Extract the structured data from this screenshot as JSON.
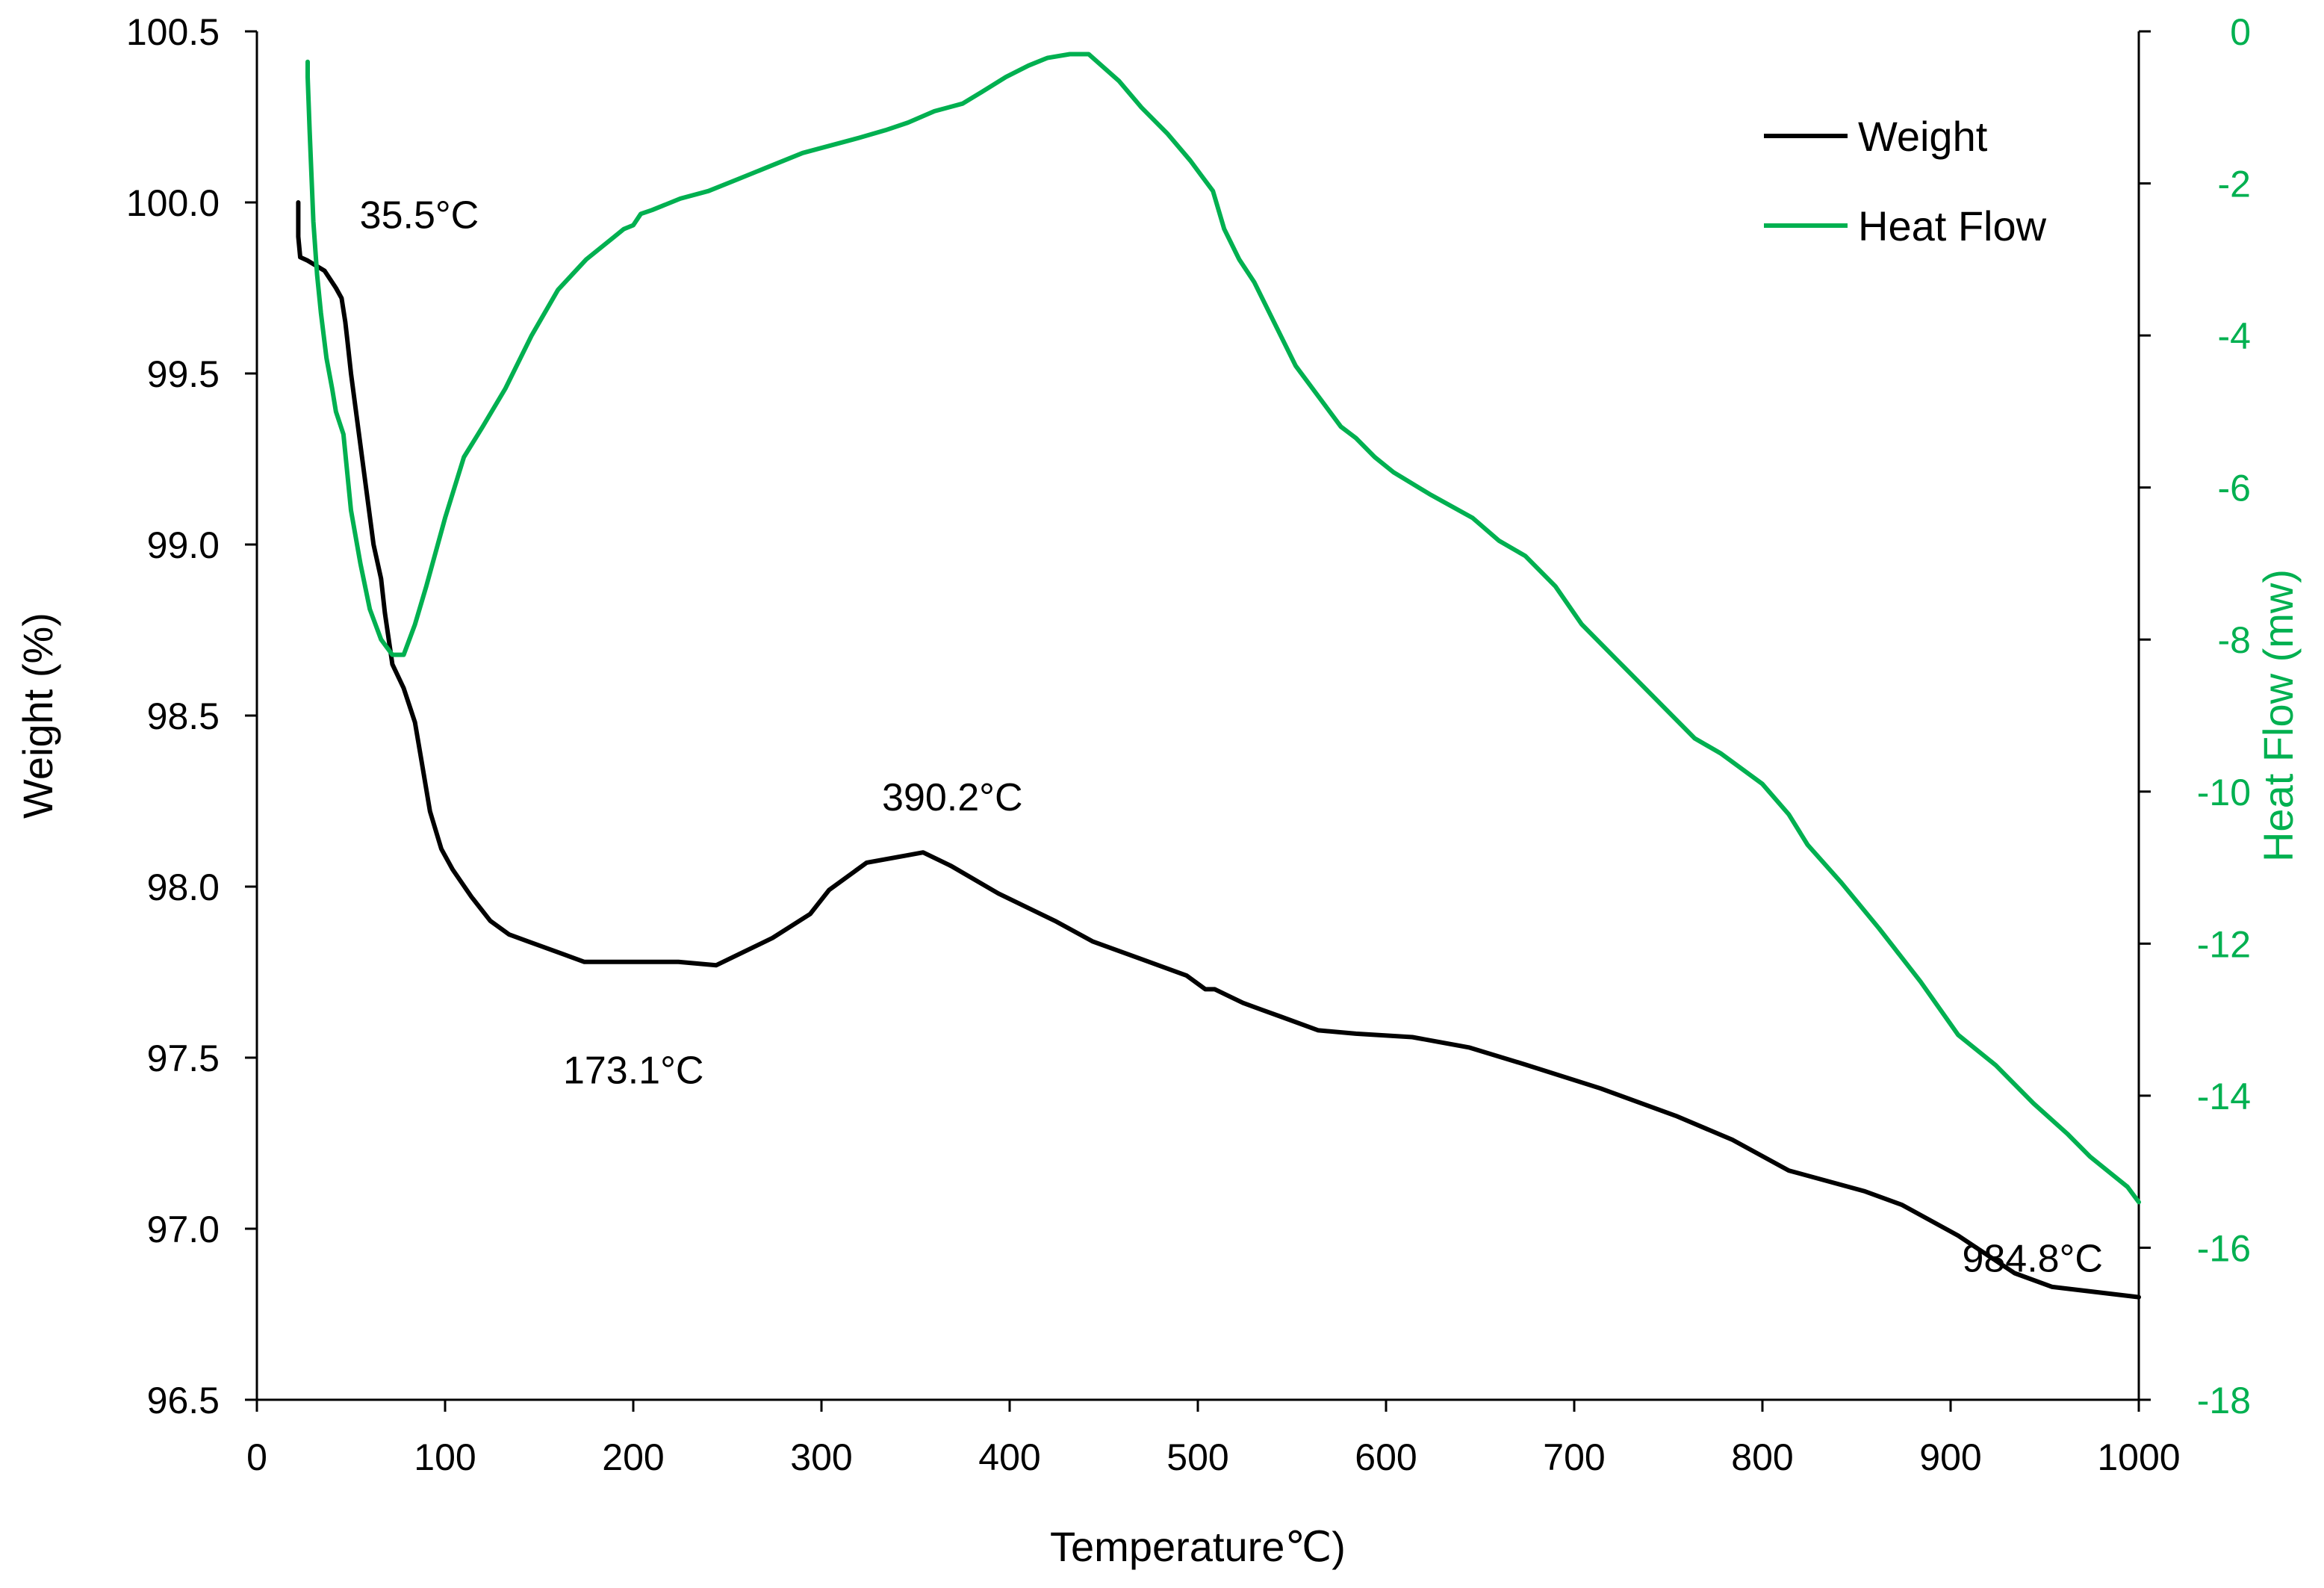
{
  "chart_data": {
    "type": "line",
    "title": "",
    "xlabel": "Temperature℃)",
    "ylabel": "Weight (%)",
    "y2label": "Heat Flow (mw)",
    "xlim": [
      0,
      1000
    ],
    "ylim": [
      96.5,
      100.5
    ],
    "y2lim": [
      -18,
      0
    ],
    "x_ticks": [
      0,
      100,
      200,
      300,
      400,
      500,
      600,
      700,
      800,
      900,
      1000
    ],
    "x_tick_labels": [
      "0",
      "100",
      "200",
      "300",
      "400",
      "500",
      "600",
      "700",
      "800",
      "900",
      "1000"
    ],
    "y_ticks": [
      96.5,
      97.0,
      97.5,
      98.0,
      98.5,
      99.0,
      99.5,
      100.0,
      100.5
    ],
    "y_tick_labels": [
      "96.5",
      "97.0",
      "97.5",
      "98.0",
      "98.5",
      "99.0",
      "99.5",
      "100.0",
      "100.5"
    ],
    "y2_ticks": [
      0,
      -2,
      -4,
      -6,
      -8,
      -10,
      -12,
      -14,
      -16,
      -18
    ],
    "y2_tick_labels": [
      "0",
      "-2",
      "-4",
      "-6",
      "-8",
      "-10",
      "-12",
      "-14",
      "-16",
      "-18"
    ],
    "grid": false,
    "legend_position": "top-right",
    "colors": {
      "weight": "#000000",
      "heat_flow": "#00b050",
      "axis": "#000000"
    },
    "series": [
      {
        "name": "Weight",
        "axis": "left",
        "x": [
          22,
          22,
          23,
          27,
          36,
          42,
          45,
          47,
          48,
          50,
          56,
          62,
          66,
          68,
          72,
          78,
          84,
          88,
          92,
          98,
          104,
          114,
          124,
          134,
          144,
          154,
          164,
          174,
          184,
          204,
          224,
          244,
          274,
          294,
          304,
          324,
          344,
          354,
          369,
          394,
          424,
          444,
          464,
          494,
          504,
          509,
          524,
          534,
          544,
          564,
          584,
          614,
          644,
          674,
          714,
          754,
          784,
          814,
          854,
          874,
          904,
          934,
          954,
          1000
        ],
        "y": [
          100.0,
          99.9,
          99.84,
          99.83,
          99.8,
          99.75,
          99.72,
          99.65,
          99.6,
          99.5,
          99.25,
          99.0,
          98.9,
          98.8,
          98.65,
          98.58,
          98.48,
          98.35,
          98.22,
          98.11,
          98.05,
          97.97,
          97.9,
          97.86,
          97.84,
          97.82,
          97.8,
          97.78,
          97.78,
          97.78,
          97.78,
          97.77,
          97.85,
          97.92,
          97.99,
          98.07,
          98.09,
          98.1,
          98.06,
          97.98,
          97.9,
          97.84,
          97.8,
          97.74,
          97.7,
          97.7,
          97.66,
          97.64,
          97.62,
          97.58,
          97.57,
          97.56,
          97.53,
          97.48,
          97.41,
          97.33,
          97.26,
          97.17,
          97.11,
          97.07,
          96.98,
          96.87,
          96.83,
          96.8
        ]
      },
      {
        "name": "Heat Flow",
        "axis": "right",
        "x": [
          27,
          27,
          28,
          30,
          32,
          34,
          37,
          40,
          42,
          46,
          50,
          55,
          60,
          66,
          72,
          78,
          84,
          90,
          100,
          110,
          120,
          132,
          146,
          160,
          175,
          190,
          195,
          200,
          204,
          210,
          225,
          240,
          255,
          270,
          290,
          320,
          334,
          346,
          360,
          375,
          385,
          398,
          410,
          420,
          432,
          442,
          458,
          470,
          484,
          496,
          502,
          508,
          514,
          522,
          530,
          542,
          552,
          564,
          576,
          584,
          594,
          604,
          624,
          646,
          660,
          674,
          690,
          704,
          724,
          744,
          764,
          778,
          800,
          814,
          824,
          842,
          862,
          884,
          904,
          924,
          944,
          962,
          974,
          984,
          994,
          1000
        ],
        "y": [
          -0.4,
          -0.6,
          -1.3,
          -2.5,
          -3.2,
          -3.7,
          -4.3,
          -4.7,
          -5.0,
          -5.3,
          -6.3,
          -7.0,
          -7.6,
          -8.0,
          -8.2,
          -8.2,
          -7.8,
          -7.3,
          -6.4,
          -5.6,
          -5.2,
          -4.7,
          -4.0,
          -3.4,
          -3.0,
          -2.7,
          -2.6,
          -2.55,
          -2.4,
          -2.35,
          -2.2,
          -2.1,
          -1.95,
          -1.8,
          -1.6,
          -1.4,
          -1.3,
          -1.2,
          -1.05,
          -0.95,
          -0.8,
          -0.6,
          -0.45,
          -0.35,
          -0.3,
          -0.3,
          -0.65,
          -1.0,
          -1.35,
          -1.7,
          -1.9,
          -2.1,
          -2.6,
          -3.0,
          -3.3,
          -3.9,
          -4.4,
          -4.8,
          -5.2,
          -5.35,
          -5.6,
          -5.8,
          -6.1,
          -6.4,
          -6.7,
          -6.9,
          -7.3,
          -7.8,
          -8.3,
          -8.8,
          -9.3,
          -9.5,
          -9.9,
          -10.3,
          -10.7,
          -11.2,
          -11.8,
          -12.5,
          -13.2,
          -13.6,
          -14.1,
          -14.5,
          -14.8,
          -15.0,
          -15.2,
          -15.4
        ]
      }
    ],
    "annotations": [
      {
        "text": "35.5°C",
        "x": 35.5,
        "y": 99.84
      },
      {
        "text": "173.1°C",
        "x": 173.1,
        "y": 97.8
      },
      {
        "text": "390.2°C",
        "x": 390.2,
        "y": 98.1
      },
      {
        "text": "984.8°C",
        "x": 984.8,
        "y": 96.8
      }
    ]
  }
}
